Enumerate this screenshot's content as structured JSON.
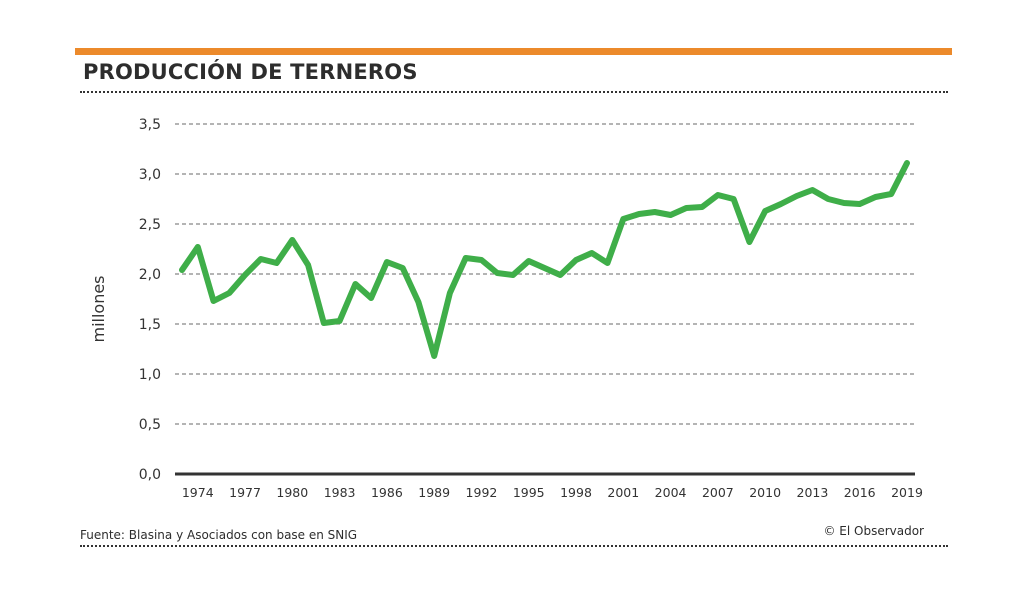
{
  "header": {
    "accent_color": "#ec8a2b",
    "title": "PRODUCCIÓN DE TERNEROS"
  },
  "footer": {
    "source": "Fuente: Blasina y Asociados con base en SNIG",
    "credit": "© El Observador"
  },
  "chart_data": {
    "type": "line",
    "title": "PRODUCCIÓN DE TERNEROS",
    "xlabel": "",
    "ylabel": "millones",
    "ylim": [
      0,
      3.5
    ],
    "xlim": [
      1973,
      2019
    ],
    "yticks": [
      0.0,
      0.5,
      1.0,
      1.5,
      2.0,
      2.5,
      3.0,
      3.5
    ],
    "ytick_labels": [
      "0,0",
      "0,5",
      "1,0",
      "1,5",
      "2,0",
      "2,5",
      "3,0",
      "3,5"
    ],
    "xticks": [
      1974,
      1977,
      1980,
      1983,
      1986,
      1989,
      1992,
      1995,
      1998,
      2001,
      2004,
      2007,
      2010,
      2013,
      2016,
      2019
    ],
    "xtick_labels": [
      "1974",
      "1977",
      "1980",
      "1983",
      "1986",
      "1989",
      "1992",
      "1995",
      "1998",
      "2001",
      "2004",
      "2007",
      "2010",
      "2013",
      "2016",
      "2019"
    ],
    "grid": "horizontal-dashed",
    "line_color": "#3fae49",
    "series": [
      {
        "name": "Producción de terneros",
        "x": [
          1973,
          1974,
          1975,
          1976,
          1977,
          1978,
          1979,
          1980,
          1981,
          1982,
          1983,
          1984,
          1985,
          1986,
          1987,
          1988,
          1989,
          1990,
          1991,
          1992,
          1993,
          1994,
          1995,
          1996,
          1997,
          1998,
          1999,
          2000,
          2001,
          2002,
          2003,
          2004,
          2005,
          2006,
          2007,
          2008,
          2009,
          2010,
          2011,
          2012,
          2013,
          2014,
          2015,
          2016,
          2017,
          2018,
          2019
        ],
        "values": [
          2.04,
          2.27,
          1.73,
          1.81,
          1.99,
          2.15,
          2.11,
          2.34,
          2.09,
          1.51,
          1.53,
          1.9,
          1.76,
          2.12,
          2.06,
          1.72,
          1.18,
          1.81,
          2.16,
          2.14,
          2.01,
          1.99,
          2.13,
          2.06,
          1.99,
          2.14,
          2.21,
          2.11,
          2.55,
          2.6,
          2.62,
          2.59,
          2.66,
          2.67,
          2.79,
          2.75,
          2.32,
          2.63,
          2.7,
          2.78,
          2.84,
          2.75,
          2.71,
          2.7,
          2.77,
          2.8,
          3.11
        ]
      }
    ]
  }
}
